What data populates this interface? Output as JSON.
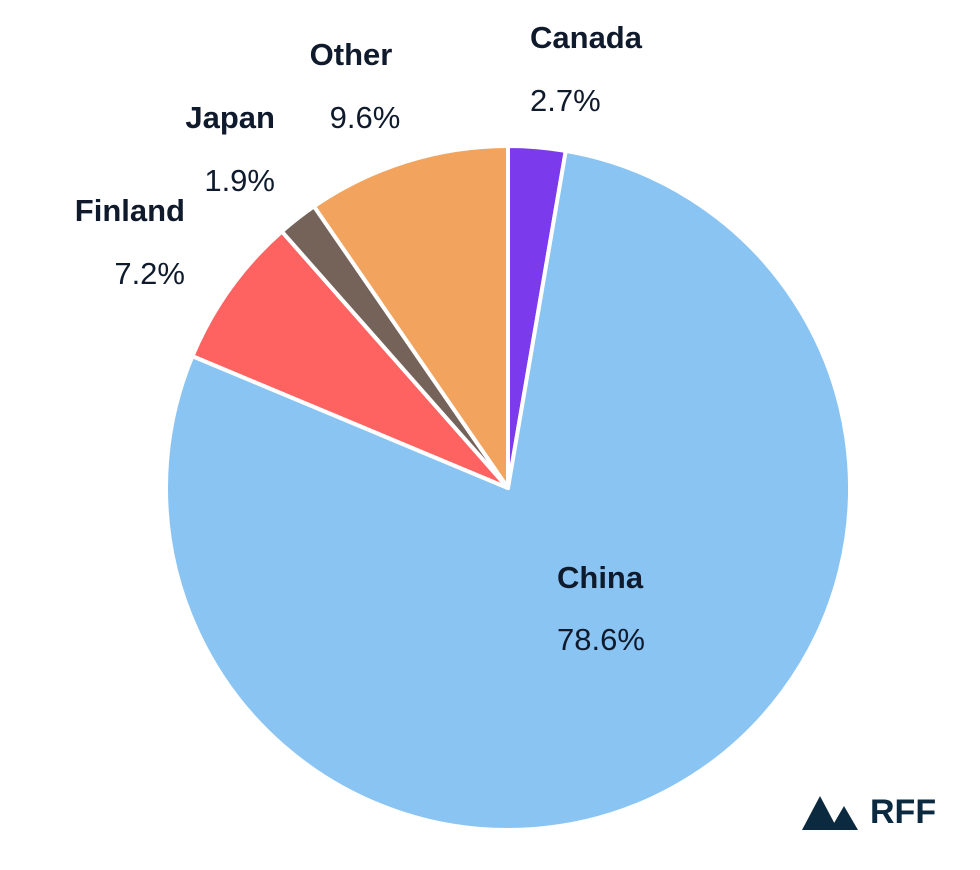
{
  "chart_data": {
    "type": "pie",
    "categories": [
      "Canada",
      "China",
      "Finland",
      "Japan",
      "Other"
    ],
    "values": [
      2.7,
      78.6,
      7.2,
      1.9,
      9.6
    ],
    "value_labels": [
      "2.7%",
      "78.6%",
      "7.2%",
      "1.9%",
      "9.6%"
    ],
    "colors": [
      "#7b3aec",
      "#8ac4f3",
      "#ff6361",
      "#75635a",
      "#f2a35e"
    ],
    "logo": "RFF"
  }
}
